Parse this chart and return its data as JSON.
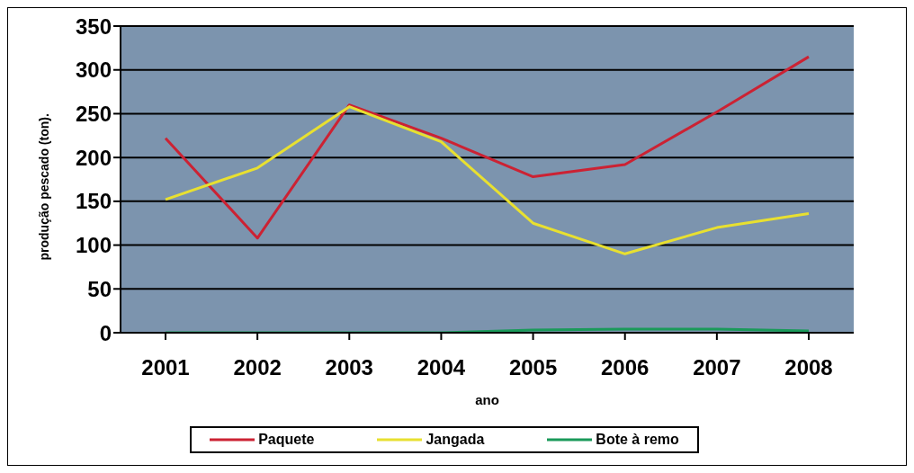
{
  "chart_data": {
    "type": "line",
    "xlabel": "ano",
    "ylabel": "produção pescado (ton).",
    "categories": [
      "2001",
      "2002",
      "2003",
      "2004",
      "2005",
      "2006",
      "2007",
      "2008"
    ],
    "series": [
      {
        "name": "Paquete",
        "color": "#cc2233",
        "values": [
          222,
          108,
          260,
          222,
          178,
          192,
          252,
          315
        ]
      },
      {
        "name": "Jangada",
        "color": "#e8e030",
        "values": [
          152,
          188,
          258,
          218,
          125,
          90,
          120,
          136
        ]
      },
      {
        "name": "Bote à remo",
        "color": "#1a9a5a",
        "values": [
          0,
          0,
          0,
          0,
          3,
          4,
          4,
          2
        ]
      }
    ],
    "ylim": [
      0,
      350
    ],
    "yticks": [
      0,
      50,
      100,
      150,
      200,
      250,
      300,
      350
    ],
    "grid": "y",
    "legend": "bottom",
    "marker": "none"
  }
}
